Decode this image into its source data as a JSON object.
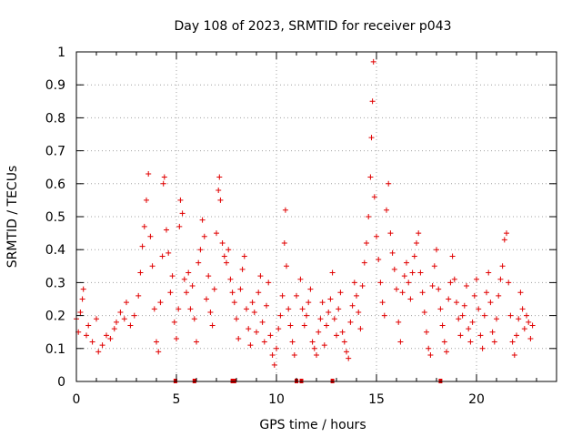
{
  "chart_data": {
    "type": "scatter",
    "title": "Day 108 of 2023, SRMTID for receiver p043",
    "xlabel": "GPS time / hours",
    "ylabel": "SRMTID / TECUs",
    "xlim": [
      0,
      24
    ],
    "ylim": [
      0,
      1
    ],
    "xticks": [
      0,
      5,
      10,
      15,
      20
    ],
    "xtick_labels": [
      "0",
      "5",
      "10",
      "15",
      "20"
    ],
    "yticks": [
      0,
      0.1,
      0.2,
      0.3,
      0.4,
      0.5,
      0.6,
      0.7,
      0.8,
      0.9,
      1
    ],
    "ytick_labels": [
      "0",
      "0.1",
      "0.2",
      "0.3",
      "0.4",
      "0.5",
      "0.6",
      "0.7",
      "0.8",
      "0.9",
      "1"
    ],
    "grid": true,
    "marker": "+",
    "color": "#e00000",
    "x_range_hours": [
      0,
      22.8
    ],
    "series": [
      {
        "name": "SRMTID",
        "points": [
          [
            0.0,
            0.19
          ],
          [
            0.1,
            0.15
          ],
          [
            0.2,
            0.21
          ],
          [
            0.3,
            0.25
          ],
          [
            0.35,
            0.28
          ],
          [
            0.5,
            0.14
          ],
          [
            0.6,
            0.17
          ],
          [
            0.8,
            0.12
          ],
          [
            1.0,
            0.19
          ],
          [
            1.1,
            0.09
          ],
          [
            1.3,
            0.11
          ],
          [
            1.5,
            0.14
          ],
          [
            1.7,
            0.13
          ],
          [
            1.9,
            0.16
          ],
          [
            2.0,
            0.18
          ],
          [
            2.2,
            0.21
          ],
          [
            2.4,
            0.19
          ],
          [
            2.5,
            0.24
          ],
          [
            2.7,
            0.17
          ],
          [
            2.9,
            0.2
          ],
          [
            3.1,
            0.26
          ],
          [
            3.2,
            0.33
          ],
          [
            3.3,
            0.41
          ],
          [
            3.4,
            0.47
          ],
          [
            3.5,
            0.55
          ],
          [
            3.6,
            0.63
          ],
          [
            3.7,
            0.44
          ],
          [
            3.8,
            0.35
          ],
          [
            3.9,
            0.22
          ],
          [
            4.0,
            0.12
          ],
          [
            4.1,
            0.09
          ],
          [
            4.2,
            0.24
          ],
          [
            4.3,
            0.38
          ],
          [
            4.35,
            0.6
          ],
          [
            4.4,
            0.62
          ],
          [
            4.5,
            0.46
          ],
          [
            4.6,
            0.39
          ],
          [
            4.7,
            0.27
          ],
          [
            4.8,
            0.32
          ],
          [
            4.9,
            0.18
          ],
          [
            5.0,
            0.13
          ],
          [
            5.1,
            0.22
          ],
          [
            5.15,
            0.47
          ],
          [
            5.2,
            0.55
          ],
          [
            5.3,
            0.51
          ],
          [
            5.4,
            0.31
          ],
          [
            5.5,
            0.27
          ],
          [
            5.6,
            0.33
          ],
          [
            5.7,
            0.22
          ],
          [
            5.8,
            0.29
          ],
          [
            5.9,
            0.19
          ],
          [
            6.0,
            0.12
          ],
          [
            6.1,
            0.36
          ],
          [
            6.2,
            0.4
          ],
          [
            6.3,
            0.49
          ],
          [
            6.4,
            0.44
          ],
          [
            6.5,
            0.25
          ],
          [
            6.6,
            0.32
          ],
          [
            6.7,
            0.21
          ],
          [
            6.8,
            0.17
          ],
          [
            6.9,
            0.28
          ],
          [
            7.0,
            0.45
          ],
          [
            7.1,
            0.58
          ],
          [
            7.15,
            0.62
          ],
          [
            7.2,
            0.55
          ],
          [
            7.3,
            0.42
          ],
          [
            7.4,
            0.38
          ],
          [
            7.5,
            0.36
          ],
          [
            7.6,
            0.4
          ],
          [
            7.7,
            0.31
          ],
          [
            7.8,
            0.27
          ],
          [
            7.9,
            0.24
          ],
          [
            8.0,
            0.19
          ],
          [
            8.1,
            0.13
          ],
          [
            8.2,
            0.28
          ],
          [
            8.3,
            0.34
          ],
          [
            8.4,
            0.38
          ],
          [
            8.5,
            0.22
          ],
          [
            8.6,
            0.16
          ],
          [
            8.7,
            0.11
          ],
          [
            8.8,
            0.24
          ],
          [
            8.9,
            0.21
          ],
          [
            9.0,
            0.15
          ],
          [
            9.1,
            0.27
          ],
          [
            9.2,
            0.32
          ],
          [
            9.3,
            0.18
          ],
          [
            9.4,
            0.12
          ],
          [
            9.5,
            0.23
          ],
          [
            9.6,
            0.3
          ],
          [
            9.7,
            0.14
          ],
          [
            9.8,
            0.08
          ],
          [
            9.9,
            0.05
          ],
          [
            10.0,
            0.1
          ],
          [
            10.1,
            0.16
          ],
          [
            10.2,
            0.2
          ],
          [
            10.3,
            0.26
          ],
          [
            10.4,
            0.42
          ],
          [
            10.45,
            0.52
          ],
          [
            10.5,
            0.35
          ],
          [
            10.6,
            0.22
          ],
          [
            10.7,
            0.17
          ],
          [
            10.8,
            0.12
          ],
          [
            10.9,
            0.08
          ],
          [
            11.0,
            0.26
          ],
          [
            11.2,
            0.31
          ],
          [
            11.3,
            0.22
          ],
          [
            11.4,
            0.17
          ],
          [
            11.5,
            0.2
          ],
          [
            11.6,
            0.24
          ],
          [
            11.7,
            0.28
          ],
          [
            11.8,
            0.12
          ],
          [
            11.9,
            0.1
          ],
          [
            12.0,
            0.08
          ],
          [
            12.1,
            0.15
          ],
          [
            12.2,
            0.19
          ],
          [
            12.3,
            0.24
          ],
          [
            12.4,
            0.11
          ],
          [
            12.5,
            0.17
          ],
          [
            12.6,
            0.21
          ],
          [
            12.7,
            0.25
          ],
          [
            12.8,
            0.33
          ],
          [
            12.9,
            0.19
          ],
          [
            13.0,
            0.14
          ],
          [
            13.1,
            0.22
          ],
          [
            13.2,
            0.27
          ],
          [
            13.3,
            0.15
          ],
          [
            13.4,
            0.12
          ],
          [
            13.5,
            0.09
          ],
          [
            13.6,
            0.07
          ],
          [
            13.7,
            0.18
          ],
          [
            13.8,
            0.23
          ],
          [
            13.9,
            0.3
          ],
          [
            14.0,
            0.26
          ],
          [
            14.1,
            0.21
          ],
          [
            14.2,
            0.16
          ],
          [
            14.3,
            0.29
          ],
          [
            14.4,
            0.36
          ],
          [
            14.5,
            0.42
          ],
          [
            14.6,
            0.5
          ],
          [
            14.7,
            0.62
          ],
          [
            14.75,
            0.74
          ],
          [
            14.8,
            0.85
          ],
          [
            14.85,
            0.97
          ],
          [
            14.9,
            0.56
          ],
          [
            15.0,
            0.44
          ],
          [
            15.1,
            0.37
          ],
          [
            15.2,
            0.3
          ],
          [
            15.3,
            0.24
          ],
          [
            15.4,
            0.2
          ],
          [
            15.5,
            0.52
          ],
          [
            15.6,
            0.6
          ],
          [
            15.7,
            0.45
          ],
          [
            15.8,
            0.39
          ],
          [
            15.9,
            0.34
          ],
          [
            16.0,
            0.28
          ],
          [
            16.1,
            0.18
          ],
          [
            16.2,
            0.12
          ],
          [
            16.3,
            0.27
          ],
          [
            16.4,
            0.32
          ],
          [
            16.5,
            0.36
          ],
          [
            16.6,
            0.3
          ],
          [
            16.7,
            0.25
          ],
          [
            16.8,
            0.33
          ],
          [
            16.9,
            0.38
          ],
          [
            17.0,
            0.42
          ],
          [
            17.1,
            0.45
          ],
          [
            17.2,
            0.33
          ],
          [
            17.3,
            0.27
          ],
          [
            17.4,
            0.21
          ],
          [
            17.5,
            0.15
          ],
          [
            17.6,
            0.1
          ],
          [
            17.7,
            0.08
          ],
          [
            17.8,
            0.29
          ],
          [
            17.9,
            0.35
          ],
          [
            18.0,
            0.4
          ],
          [
            18.1,
            0.28
          ],
          [
            18.2,
            0.22
          ],
          [
            18.3,
            0.17
          ],
          [
            18.4,
            0.12
          ],
          [
            18.5,
            0.09
          ],
          [
            18.6,
            0.25
          ],
          [
            18.7,
            0.3
          ],
          [
            18.8,
            0.38
          ],
          [
            18.9,
            0.31
          ],
          [
            19.0,
            0.24
          ],
          [
            19.1,
            0.19
          ],
          [
            19.2,
            0.14
          ],
          [
            19.3,
            0.2
          ],
          [
            19.4,
            0.23
          ],
          [
            19.5,
            0.29
          ],
          [
            19.6,
            0.16
          ],
          [
            19.7,
            0.12
          ],
          [
            19.8,
            0.18
          ],
          [
            19.9,
            0.26
          ],
          [
            20.0,
            0.31
          ],
          [
            20.1,
            0.22
          ],
          [
            20.2,
            0.14
          ],
          [
            20.3,
            0.1
          ],
          [
            20.4,
            0.2
          ],
          [
            20.5,
            0.27
          ],
          [
            20.6,
            0.33
          ],
          [
            20.7,
            0.24
          ],
          [
            20.8,
            0.15
          ],
          [
            20.9,
            0.12
          ],
          [
            21.0,
            0.19
          ],
          [
            21.1,
            0.26
          ],
          [
            21.2,
            0.31
          ],
          [
            21.3,
            0.35
          ],
          [
            21.4,
            0.43
          ],
          [
            21.5,
            0.45
          ],
          [
            21.6,
            0.3
          ],
          [
            21.7,
            0.2
          ],
          [
            21.8,
            0.12
          ],
          [
            21.9,
            0.08
          ],
          [
            22.0,
            0.14
          ],
          [
            22.1,
            0.19
          ],
          [
            22.2,
            0.27
          ],
          [
            22.3,
            0.22
          ],
          [
            22.4,
            0.16
          ],
          [
            22.5,
            0.2
          ],
          [
            22.6,
            0.18
          ],
          [
            22.7,
            0.13
          ],
          [
            22.8,
            0.17
          ]
        ],
        "zero_values_at_hours": [
          4.95,
          5.9,
          7.8,
          7.9,
          11.0,
          11.25,
          12.8,
          18.2
        ]
      }
    ]
  }
}
